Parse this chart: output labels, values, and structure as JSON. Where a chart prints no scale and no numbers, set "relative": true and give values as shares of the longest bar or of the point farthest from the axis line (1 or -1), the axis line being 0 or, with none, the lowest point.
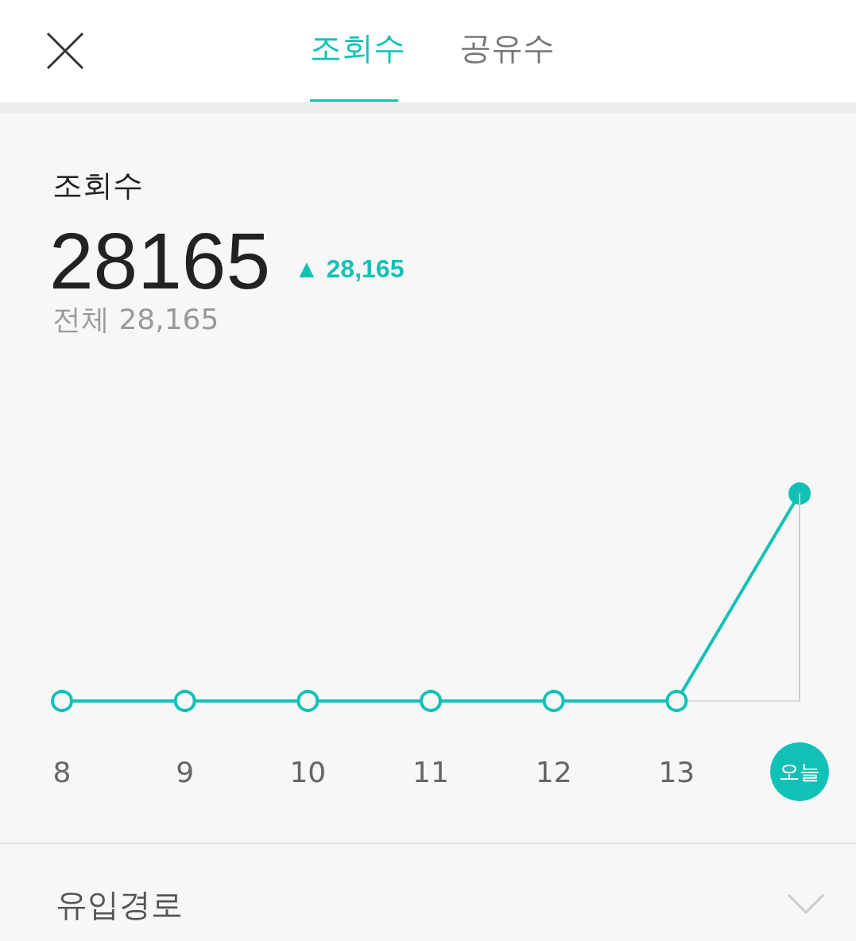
{
  "chart_data": {
    "type": "line",
    "title": "조회수",
    "categories": [
      "8",
      "9",
      "10",
      "11",
      "12",
      "13",
      "오늘"
    ],
    "series": [
      {
        "color": "#12c1b6",
        "values": [
          0,
          0,
          0,
          0,
          0,
          0,
          1
        ]
      }
    ],
    "relative": true,
    "marker": "circle",
    "line_style": "solid",
    "grid": false,
    "ref_lines": [
      {
        "axis": "x",
        "value": "오늘",
        "color": "#cccccc"
      }
    ],
    "annotations": [
      "조회수",
      "공유수",
      "28165",
      "▲ 28,165",
      "전체 28,165",
      "유입경로"
    ]
  }
}
